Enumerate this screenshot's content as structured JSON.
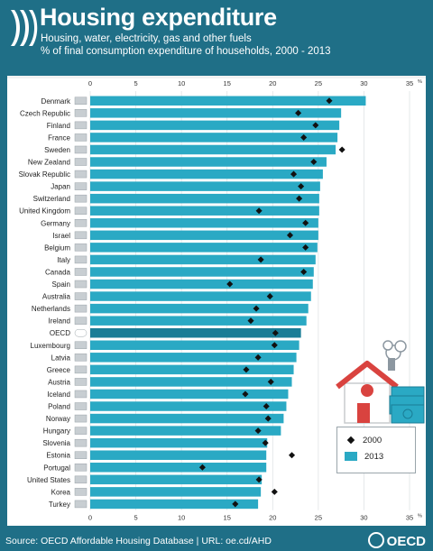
{
  "header": {
    "title": "Housing expenditure",
    "subtitle_line1": "Housing, water, electricity, gas and other fuels",
    "subtitle_line2": "% of final consumption expenditure of households, 2000 - 2013"
  },
  "footer": {
    "source": "Source: OECD Affordable Housing Database | URL: oe.cd/AHD",
    "brand": "OECD"
  },
  "colors": {
    "bar": "#2aa9c4",
    "bar_oecd": "#1a7d96",
    "diamond": "#111111",
    "background": "#1f6f87"
  },
  "chart_data": {
    "type": "bar",
    "orientation": "horizontal",
    "xlim": [
      0,
      35
    ],
    "x_ticks": [
      0,
      5,
      10,
      15,
      20,
      25,
      30,
      35
    ],
    "x_unit": "%",
    "legend": [
      "2000",
      "2013"
    ],
    "legend_position": "right",
    "categories": [
      "Denmark",
      "Czech Republic",
      "Finland",
      "France",
      "Sweden",
      "New Zealand",
      "Slovak Republic",
      "Japan",
      "Switzerland",
      "United Kingdom",
      "Germany",
      "Israel",
      "Belgium",
      "Italy",
      "Canada",
      "Spain",
      "Australia",
      "Netherlands",
      "Ireland",
      "OECD",
      "Luxembourg",
      "Latvia",
      "Greece",
      "Austria",
      "Iceland",
      "Poland",
      "Norway",
      "Hungary",
      "Slovenia",
      "Estonia",
      "Portugal",
      "United States",
      "Korea",
      "Turkey"
    ],
    "series": [
      {
        "name": "2013",
        "values": [
          30.2,
          27.5,
          27.3,
          27.1,
          26.9,
          25.9,
          25.5,
          25.2,
          25.1,
          25.1,
          25.0,
          25.0,
          24.9,
          24.7,
          24.5,
          24.4,
          24.2,
          23.9,
          23.7,
          23.1,
          22.9,
          22.6,
          22.3,
          22.1,
          21.7,
          21.5,
          21.2,
          20.9,
          19.4,
          19.3,
          19.3,
          18.8,
          18.7,
          18.4
        ]
      },
      {
        "name": "2000",
        "values": [
          26.2,
          22.8,
          24.7,
          23.4,
          27.6,
          24.5,
          22.3,
          23.1,
          22.9,
          18.5,
          23.6,
          21.9,
          23.6,
          18.7,
          23.4,
          15.3,
          19.7,
          18.2,
          17.6,
          20.3,
          20.2,
          18.4,
          17.1,
          19.8,
          17.0,
          19.3,
          19.5,
          18.4,
          19.2,
          22.1,
          12.3,
          18.5,
          20.2,
          15.9
        ]
      }
    ]
  }
}
